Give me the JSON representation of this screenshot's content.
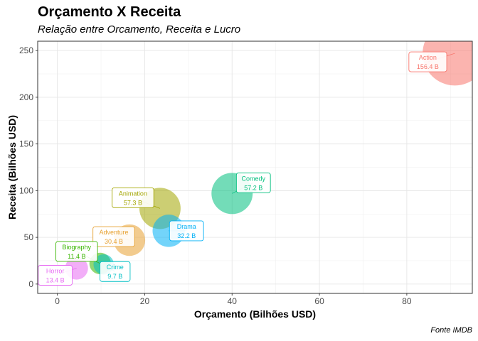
{
  "chart_data": {
    "type": "scatter",
    "title": "Orçamento X Receita",
    "subtitle": "Relação entre Orcamento, Receita e Lucro",
    "caption": "Fonte IMDB",
    "xlabel": "Orçamento (Bilhões USD)",
    "ylabel": "Receita (Bilhões USD)",
    "xlim": [
      -4.5,
      95
    ],
    "ylim": [
      -10,
      260
    ],
    "xticks": [
      0,
      20,
      40,
      60,
      80
    ],
    "yticks": [
      0,
      50,
      100,
      150,
      200,
      250
    ],
    "grid": true,
    "points": [
      {
        "genre": "Action",
        "x": 91,
        "y": 247,
        "profit_label": "156.4  B",
        "color": "#F8766D",
        "size": 156.4
      },
      {
        "genre": "Comedy",
        "x": 40,
        "y": 97,
        "profit_label": "57.2  B",
        "color": "#00BF7D",
        "size": 57.2
      },
      {
        "genre": "Animation",
        "x": 23.5,
        "y": 81,
        "profit_label": "57.3  B",
        "color": "#A3A500",
        "size": 57.3
      },
      {
        "genre": "Adventure",
        "x": 16.5,
        "y": 47,
        "profit_label": "30.4  B",
        "color": "#E7A131",
        "size": 30.4
      },
      {
        "genre": "Drama",
        "x": 25.5,
        "y": 57,
        "profit_label": "32.2  B",
        "color": "#00B0F6",
        "size": 32.2
      },
      {
        "genre": "Biography",
        "x": 9.8,
        "y": 22,
        "profit_label": "11.4  B",
        "color": "#39B600",
        "size": 11.4
      },
      {
        "genre": "Crime",
        "x": 10.6,
        "y": 21,
        "profit_label": "9.7  B",
        "color": "#00BFC4",
        "size": 9.7
      },
      {
        "genre": "Horror",
        "x": 4.4,
        "y": 17,
        "profit_label": "13.4  B",
        "color": "#E76BF3",
        "size": 13.4
      }
    ]
  }
}
